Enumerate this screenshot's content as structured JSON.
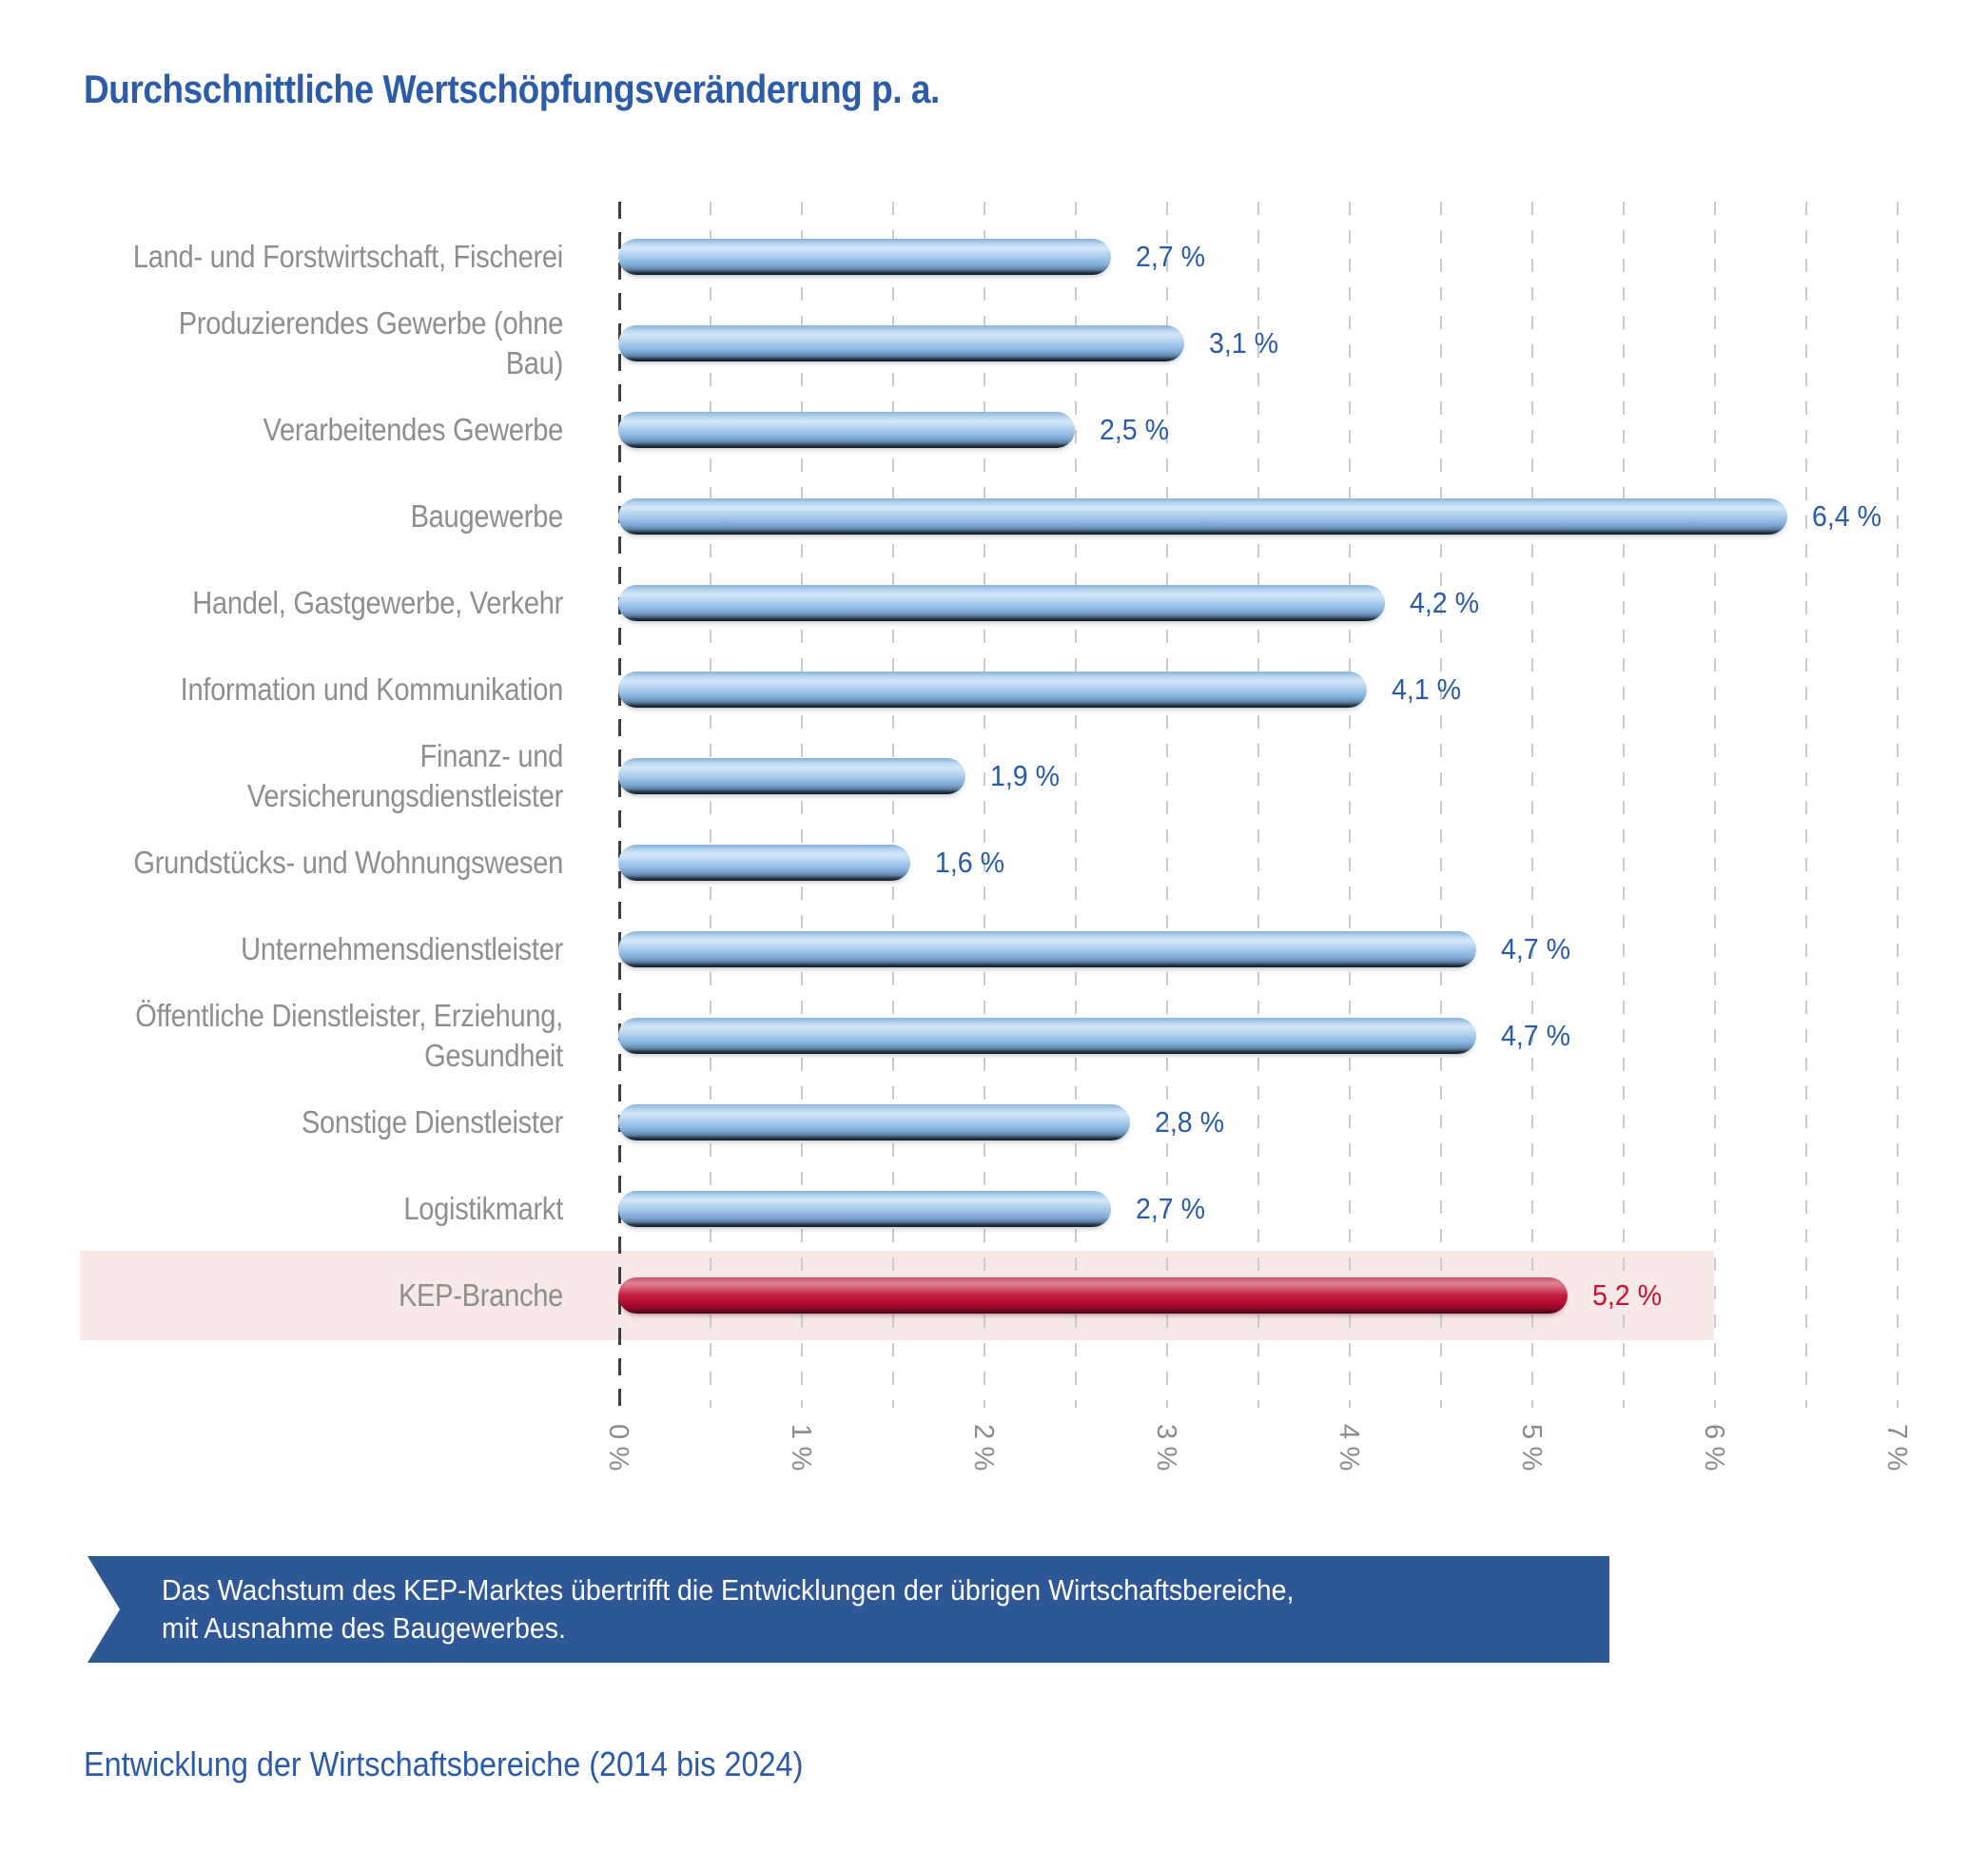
{
  "title": "Durchschnittliche Wertschöpfungsveränderung p. a.",
  "chart_data": {
    "type": "bar",
    "orientation": "horizontal",
    "unit": "%",
    "categories": [
      "Land- und Forstwirtschaft, Fischerei",
      "Produzierendes Gewerbe (ohne Bau)",
      "Verarbeitendes Gewerbe",
      "Baugewerbe",
      "Handel, Gastgewerbe, Verkehr",
      "Information und Kommunikation",
      "Finanz- und Versicherungsdienstleister",
      "Grundstücks- und Wohnungswesen",
      "Unternehmensdienstleister",
      "Öffentliche Dienstleister, Erziehung,\nGesundheit",
      "Sonstige Dienstleister",
      "Logistikmarkt",
      "KEP-Branche"
    ],
    "values": [
      2.7,
      3.1,
      2.5,
      6.4,
      4.2,
      4.1,
      1.9,
      1.6,
      4.7,
      4.7,
      2.8,
      2.7,
      5.2
    ],
    "value_labels": [
      "2,7 %",
      "3,1 %",
      "2,5 %",
      "6,4 %",
      "4,2 %",
      "4,1 %",
      "1,9 %",
      "1,6 %",
      "4,7 %",
      "4,7 %",
      "2,8 %",
      "2,7 %",
      "5,2 %"
    ],
    "highlight_index": 12,
    "highlight_category": "KEP-Branche",
    "xlim": [
      0,
      7
    ],
    "x_ticks": [
      "0 %",
      "1 %",
      "2 %",
      "3 %",
      "4 %",
      "5 %",
      "6 %",
      "7 %"
    ],
    "gridlines": "dashed vertical every 0.5 percent, dark dashed zero line",
    "legend": "none",
    "colors": {
      "bar_blue": "#93bce4",
      "bar_highlight_red": "#c41336",
      "value_label_blue": "#2b5ba6",
      "value_label_highlight": "#c41336",
      "category_label_gray": "#8e8e90",
      "axis_label_gray": "#8a8b8d",
      "highlight_band_pink": "#f9e8e8",
      "grid_gray": "#cbcbcb",
      "zero_line": "#3e3e3e"
    }
  },
  "callout": {
    "lines": [
      "Das Wachstum des KEP-Marktes übertrifft die Entwicklungen der übrigen Wirtschaftsbereiche,",
      "mit Ausnahme des Baugewerbes."
    ],
    "bg_color": "#2e5795",
    "text_color": "#ffffff"
  },
  "caption": "Entwicklung der Wirtschaftsbereiche (2014 bis 2024)"
}
